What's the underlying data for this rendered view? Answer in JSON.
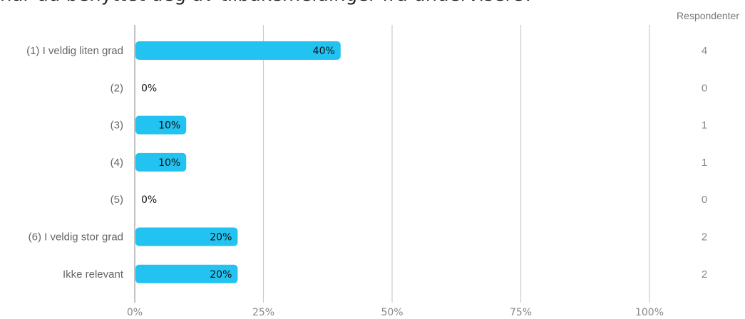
{
  "question_title": "har du benyttet deg av tilbakemeldinger fra undervisere?",
  "respondents_header": "Respondenter",
  "colors": {
    "bar": "#22c3f0",
    "grid": "#cccccc",
    "axis": "#999999",
    "label": "#666666",
    "value_label": "#111111"
  },
  "chart_data": {
    "type": "bar",
    "orientation": "horizontal",
    "title": "har du benyttet deg av tilbakemeldinger fra undervisere?",
    "categories": [
      "(1) I veldig liten grad",
      "(2)",
      "(3)",
      "(4)",
      "(5)",
      "(6) I veldig stor grad",
      "Ikke relevant"
    ],
    "values": [
      40,
      0,
      10,
      10,
      0,
      20,
      20
    ],
    "value_labels": [
      "40%",
      "0%",
      "10%",
      "10%",
      "0%",
      "20%",
      "20%"
    ],
    "respondents": [
      4,
      0,
      1,
      1,
      0,
      2,
      2
    ],
    "xlim": [
      0,
      100
    ],
    "xticks": [
      "0%",
      "25%",
      "50%",
      "75%",
      "100%"
    ],
    "grid": true
  }
}
